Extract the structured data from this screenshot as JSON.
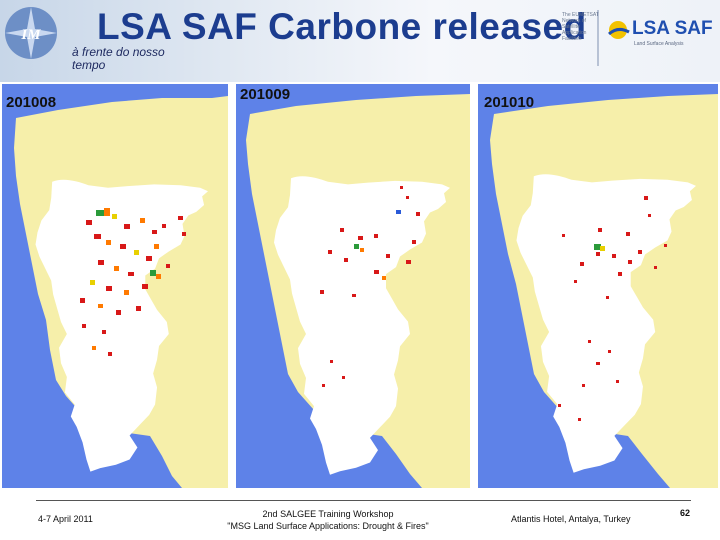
{
  "header": {
    "title": "LSA SAF Carbone released",
    "subtitle": "à frente do nosso tempo",
    "logo_left": "IM",
    "logo_right": "LSA SAF",
    "logo_right_small": "The EUMETSAT Network of Satellite Application Facilities",
    "logo_right_sub": "Land Surface Analysis"
  },
  "panels": [
    {
      "label": "201008"
    },
    {
      "label": "201009"
    },
    {
      "label": "201010"
    }
  ],
  "footer": {
    "date": "4-7 April 2011",
    "workshop_line1": "2nd SALGEE Training Workshop",
    "workshop_line2": "\"MSG Land Surface Applications: Drought & Fires\"",
    "location": "Atlantis Hotel, Antalya, Turkey",
    "page": "62"
  },
  "colors": {
    "sea": "#5e82e8",
    "land_outside": "#f6efaa",
    "portugal": "#ffffff",
    "title": "#1c3d8f",
    "fire_high": "#d81818",
    "fire_mid": "#ff7a00",
    "fire_low": "#e8d000",
    "fire_green": "#2a9a3a"
  }
}
